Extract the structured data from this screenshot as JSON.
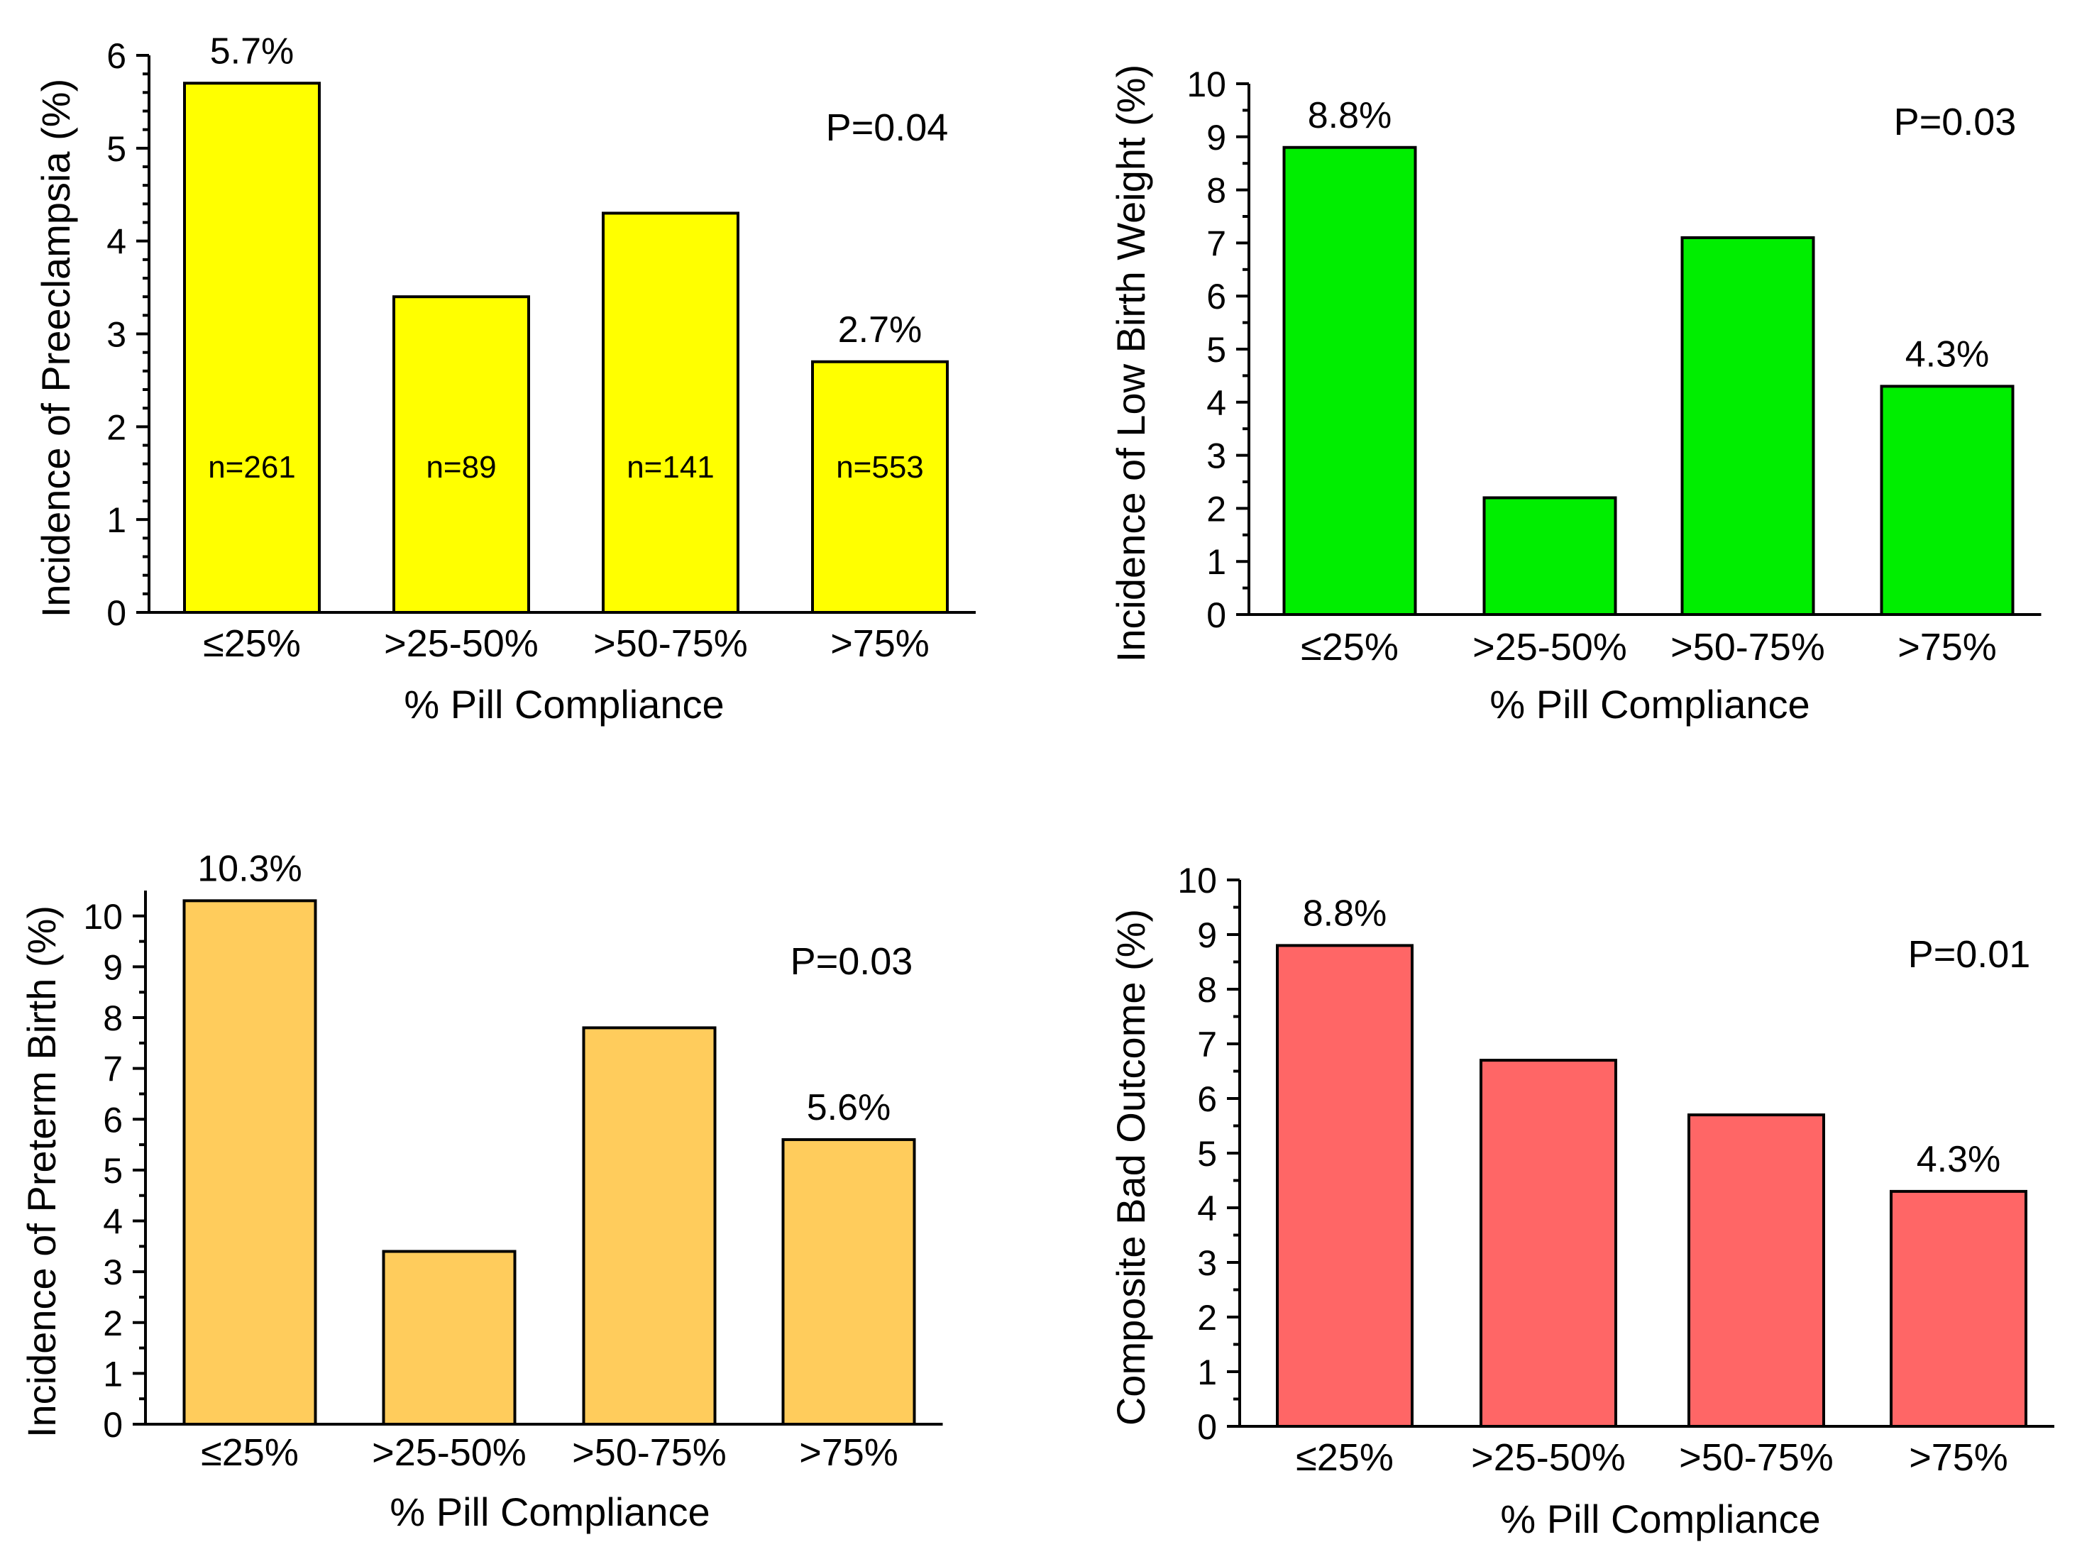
{
  "chart_data": [
    {
      "type": "bar",
      "title": "",
      "categories": [
        "≤25%",
        ">25-50%",
        ">50-75%",
        ">75%"
      ],
      "values": [
        5.7,
        3.4,
        4.3,
        2.7
      ],
      "ylim": [
        0,
        6
      ],
      "yticks": [
        "0",
        "1",
        "2",
        "3",
        "4",
        "5",
        "6"
      ],
      "xlabel": "% Pill Compliance",
      "ylabel": "Incidence of Preeclampsia (%)",
      "color": "#ffff00",
      "data_labels": [
        "5.7%",
        "",
        "",
        "2.7%"
      ],
      "n_labels": [
        "n=261",
        "n=89",
        "n=141",
        "n=553"
      ],
      "p_value": "P=0.04"
    },
    {
      "type": "bar",
      "title": "",
      "categories": [
        "≤25%",
        ">25-50%",
        ">50-75%",
        ">75%"
      ],
      "values": [
        8.8,
        2.2,
        7.1,
        4.3
      ],
      "ylim": [
        0,
        10
      ],
      "yticks": [
        "0",
        "1",
        "2",
        "3",
        "4",
        "5",
        "6",
        "7",
        "8",
        "9",
        "10"
      ],
      "xlabel": "% Pill Compliance",
      "ylabel": "Incidence of Low Birth Weight (%)",
      "color": "#00ee00",
      "data_labels": [
        "8.8%",
        "",
        "",
        "4.3%"
      ],
      "n_labels": [],
      "p_value": "P=0.03"
    },
    {
      "type": "bar",
      "title": "",
      "categories": [
        "≤25%",
        ">25-50%",
        ">50-75%",
        ">75%"
      ],
      "values": [
        10.3,
        3.4,
        7.8,
        5.6
      ],
      "ylim": [
        0,
        10.5
      ],
      "yticks": [
        "0",
        "1",
        "2",
        "3",
        "4",
        "5",
        "6",
        "7",
        "8",
        "9",
        "10"
      ],
      "xlabel": "% Pill Compliance",
      "ylabel": "Incidence of Preterm Birth (%)",
      "color": "#ffcc5c",
      "data_labels": [
        "10.3%",
        "",
        "",
        "5.6%"
      ],
      "n_labels": [],
      "p_value": "P=0.03"
    },
    {
      "type": "bar",
      "title": "",
      "categories": [
        "≤25%",
        ">25-50%",
        ">50-75%",
        ">75%"
      ],
      "values": [
        8.8,
        6.7,
        5.7,
        4.3
      ],
      "ylim": [
        0,
        10
      ],
      "yticks": [
        "0",
        "1",
        "2",
        "3",
        "4",
        "5",
        "6",
        "7",
        "8",
        "9",
        "10"
      ],
      "xlabel": "% Pill Compliance",
      "ylabel": "Composite Bad Outcome (%)",
      "color": "#ff6666",
      "data_labels": [
        "8.8%",
        "",
        "",
        "4.3%"
      ],
      "n_labels": [],
      "p_value": "P=0.01"
    }
  ]
}
